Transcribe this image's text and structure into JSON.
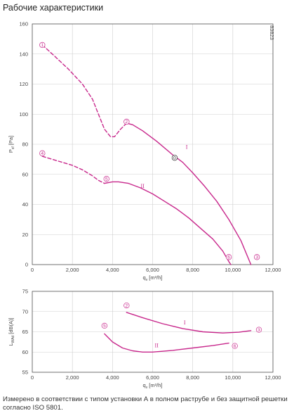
{
  "header": {
    "title": "Рабочие характеристики"
  },
  "footer": {
    "note": "Измерено в соответствии с типом установки А в полном раструбе и без защитной решетки согласно ISO 5801."
  },
  "colors": {
    "curve": "#c8288c",
    "grid": "#cfcfcf",
    "axis": "#555555"
  },
  "chart_data": [
    {
      "type": "line",
      "id": "pressure",
      "xlabel_main": "q",
      "xlabel_sub": "v",
      "xlabel_unit": "[m³/h]",
      "ylabel_main": "P",
      "ylabel_sub": "sf",
      "ylabel_unit": "[Pa]",
      "code": "83823",
      "xlim": [
        0,
        12000
      ],
      "ylim": [
        0,
        160
      ],
      "xticks": [
        0,
        2000,
        4000,
        6000,
        8000,
        10000,
        12000
      ],
      "xtick_labels": [
        "0",
        "2,000",
        "4,000",
        "6,000",
        "8,000",
        "10,000",
        "12,000"
      ],
      "yticks": [
        0,
        20,
        40,
        60,
        80,
        100,
        120,
        140,
        160
      ],
      "ytick_labels": [
        "0",
        "20",
        "40",
        "60",
        "80",
        "100",
        "120",
        "140",
        "160"
      ],
      "series": [
        {
          "name": "I",
          "style": "dashed",
          "points": [
            [
              500,
              146
            ],
            [
              1000,
              140
            ],
            [
              1800,
              130
            ],
            [
              2500,
              120
            ],
            [
              3000,
              110
            ],
            [
              3300,
              100
            ],
            [
              3600,
              90
            ],
            [
              3900,
              85
            ],
            [
              4100,
              85
            ],
            [
              4400,
              90
            ],
            [
              4700,
              94
            ]
          ]
        },
        {
          "name": "I",
          "style": "solid",
          "points": [
            [
              4700,
              94
            ],
            [
              5000,
              93
            ],
            [
              5500,
              89
            ],
            [
              6200,
              82
            ],
            [
              7000,
              73
            ],
            [
              7500,
              68
            ],
            [
              8000,
              61
            ],
            [
              8600,
              52
            ],
            [
              9200,
              42
            ],
            [
              9800,
              30
            ],
            [
              10400,
              16
            ],
            [
              10900,
              0
            ]
          ]
        },
        {
          "name": "II",
          "style": "dashed",
          "points": [
            [
              500,
              72
            ],
            [
              1000,
              70
            ],
            [
              1500,
              68
            ],
            [
              2000,
              66
            ],
            [
              2500,
              63
            ],
            [
              3000,
              59
            ],
            [
              3300,
              56
            ],
            [
              3600,
              54
            ]
          ]
        },
        {
          "name": "II",
          "style": "solid",
          "points": [
            [
              3600,
              54
            ],
            [
              4000,
              55
            ],
            [
              4300,
              55
            ],
            [
              4800,
              54
            ],
            [
              5400,
              51
            ],
            [
              6000,
              47
            ],
            [
              6600,
              42
            ],
            [
              7200,
              37
            ],
            [
              7800,
              31
            ],
            [
              8400,
              24
            ],
            [
              9000,
              17
            ],
            [
              9500,
              9
            ],
            [
              9800,
              2
            ],
            [
              9900,
              0
            ]
          ]
        }
      ],
      "markers": [
        {
          "label": "1",
          "x": 500,
          "y": 146
        },
        {
          "label": "2",
          "x": 4700,
          "y": 95
        },
        {
          "label": "3",
          "x": 11200,
          "y": 5
        },
        {
          "label": "4",
          "x": 500,
          "y": 74
        },
        {
          "label": "5",
          "x": 3700,
          "y": 57
        },
        {
          "label": "6",
          "x": 9800,
          "y": 5
        },
        {
          "label": "0",
          "x": 7100,
          "y": 71
        }
      ],
      "curve_labels": [
        {
          "text": "I",
          "x": 7700,
          "y": 77
        },
        {
          "text": "II",
          "x": 5500,
          "y": 51
        }
      ]
    },
    {
      "type": "line",
      "id": "sound",
      "xlabel_main": "q",
      "xlabel_sub": "v",
      "xlabel_unit": "[m³/h]",
      "ylabel_main": "L",
      "ylabel_sub": "WAd",
      "ylabel_unit": "[dB(A)]",
      "xlim": [
        0,
        12000
      ],
      "ylim": [
        55,
        75
      ],
      "xticks": [
        0,
        2000,
        4000,
        6000,
        8000,
        10000,
        12000
      ],
      "xtick_labels": [
        "0",
        "2,000",
        "4,000",
        "6,000",
        "8,000",
        "10,000",
        "12,000"
      ],
      "yticks": [
        55,
        60,
        65,
        70,
        75
      ],
      "ytick_labels": [
        "55",
        "60",
        "65",
        "70",
        "75"
      ],
      "series": [
        {
          "name": "I",
          "style": "solid",
          "points": [
            [
              4700,
              69.8
            ],
            [
              5500,
              68.5
            ],
            [
              6500,
              67
            ],
            [
              7500,
              65.8
            ],
            [
              8500,
              65
            ],
            [
              9500,
              64.7
            ],
            [
              10300,
              64.9
            ],
            [
              10900,
              65.3
            ]
          ]
        },
        {
          "name": "II",
          "style": "solid",
          "points": [
            [
              3600,
              64.5
            ],
            [
              4000,
              62.5
            ],
            [
              4500,
              61
            ],
            [
              5000,
              60.3
            ],
            [
              5500,
              60
            ],
            [
              6000,
              60
            ],
            [
              7000,
              60.4
            ],
            [
              8000,
              61
            ],
            [
              9000,
              61.6
            ],
            [
              9800,
              62.2
            ]
          ]
        }
      ],
      "markers": [
        {
          "label": "2",
          "x": 4700,
          "y": 71.5
        },
        {
          "label": "5",
          "x": 3600,
          "y": 66.5
        },
        {
          "label": "3",
          "x": 11300,
          "y": 65.5
        },
        {
          "label": "6",
          "x": 10100,
          "y": 61.5
        }
      ],
      "curve_labels": [
        {
          "text": "I",
          "x": 7600,
          "y": 66.8
        },
        {
          "text": "II",
          "x": 6200,
          "y": 61.2
        }
      ]
    }
  ]
}
